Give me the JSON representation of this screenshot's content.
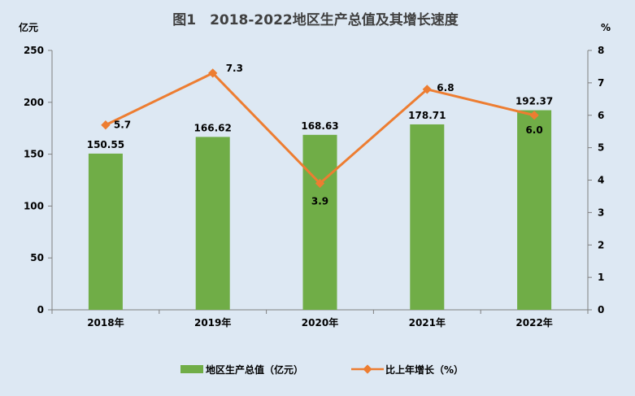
{
  "chart_data": {
    "type": "bar+line",
    "title": "图1　2018-2022地区生产总值及其增长速度",
    "categories": [
      "2018年",
      "2019年",
      "2020年",
      "2021年",
      "2022年"
    ],
    "y_left_unit": "亿元",
    "y_right_unit": "%",
    "y_left_range": [
      0,
      250
    ],
    "y_left_ticks": [
      "0",
      "50",
      "100",
      "150",
      "200",
      "250"
    ],
    "y_right_range": [
      0,
      8
    ],
    "y_right_ticks": [
      "0",
      "1",
      "2",
      "3",
      "4",
      "5",
      "6",
      "7",
      "8"
    ],
    "series": [
      {
        "name": "地区生产总值（亿元）",
        "type": "bar",
        "axis": "left",
        "color": "#70ad47",
        "values": [
          150.55,
          166.62,
          168.63,
          178.71,
          192.37
        ],
        "labels": [
          "150.55",
          "166.62",
          "168.63",
          "178.71",
          "192.37"
        ]
      },
      {
        "name": "比上年增长（%）",
        "type": "line",
        "axis": "right",
        "color": "#ed7d31",
        "values": [
          5.7,
          7.3,
          3.9,
          6.8,
          6.0
        ],
        "labels": [
          "5.7",
          "7.3",
          "3.9",
          "6.8",
          "6.0"
        ]
      }
    ],
    "grid": false,
    "legend": "bottom"
  }
}
